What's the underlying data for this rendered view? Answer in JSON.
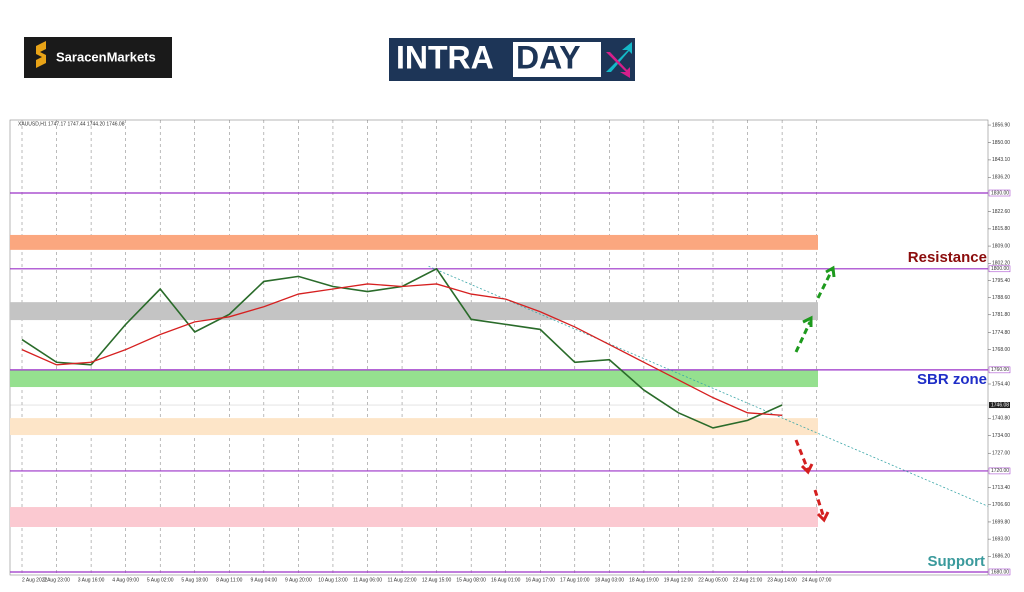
{
  "brand": "SaracenMarkets",
  "banner": {
    "left": "INTRA",
    "right": "DAY"
  },
  "chart_data": {
    "type": "line",
    "title": "XAUUSD,H1 1747.17 1747.44 1744.20 1746.08",
    "categories": [
      "2 Aug 2022",
      "2 Aug 23:00",
      "3 Aug 16:00",
      "4 Aug 09:00",
      "5 Aug 02:00",
      "5 Aug 18:00",
      "8 Aug 11:00",
      "9 Aug 04:00",
      "9 Aug 20:00",
      "10 Aug 13:00",
      "11 Aug 06:00",
      "11 Aug 22:00",
      "12 Aug 15:00",
      "15 Aug 08:00",
      "16 Aug 01:00",
      "16 Aug 17:00",
      "17 Aug 10:00",
      "18 Aug 03:00",
      "18 Aug 19:00",
      "19 Aug 12:00",
      "22 Aug 05:00",
      "22 Aug 21:00",
      "23 Aug 14:00",
      "24 Aug 07:00"
    ],
    "series": [
      {
        "name": "XAUUSD",
        "color": "#2a6b2a",
        "values": [
          1772,
          1763,
          1762,
          1778,
          1792,
          1775,
          1782,
          1795,
          1797,
          1793,
          1791,
          1793,
          1800,
          1780,
          1778,
          1776,
          1763,
          1764,
          1752,
          1743,
          1737,
          1740,
          1746.08,
          null
        ]
      },
      {
        "name": "MA",
        "color": "#d62020",
        "values": [
          1768,
          1762,
          1763,
          1768,
          1774,
          1779,
          1781,
          1785,
          1790,
          1792,
          1794,
          1793,
          1794,
          1790,
          1788,
          1783,
          1777,
          1770,
          1763,
          1756,
          1749,
          1743,
          1742,
          null
        ]
      }
    ],
    "current_price": 1746.08,
    "ylim": [
      1678.8,
      1858.9
    ],
    "yticks": [
      {
        "value": 1856.9,
        "label": "1856.90"
      },
      {
        "value": 1850,
        "label": "1850.00"
      },
      {
        "value": 1843.1,
        "label": "1843.10"
      },
      {
        "value": 1836.2,
        "label": "1836.20"
      },
      {
        "value": 1822.6,
        "label": "1822.60"
      },
      {
        "value": 1815.8,
        "label": "1815.80"
      },
      {
        "value": 1809,
        "label": "1809.00"
      },
      {
        "value": 1802.2,
        "label": "1802.20"
      },
      {
        "value": 1795.4,
        "label": "1795.40"
      },
      {
        "value": 1788.6,
        "label": "1788.60"
      },
      {
        "value": 1781.8,
        "label": "1781.80"
      },
      {
        "value": 1774.8,
        "label": "1774.80"
      },
      {
        "value": 1768,
        "label": "1768.00"
      },
      {
        "value": 1754.4,
        "label": "1754.40"
      },
      {
        "value": 1740.8,
        "label": "1740.80"
      },
      {
        "value": 1734,
        "label": "1734.00"
      },
      {
        "value": 1727,
        "label": "1727.00"
      },
      {
        "value": 1713.4,
        "label": "1713.40"
      },
      {
        "value": 1706.6,
        "label": "1706.60"
      },
      {
        "value": 1699.8,
        "label": "1699.80"
      },
      {
        "value": 1693,
        "label": "1693.00"
      },
      {
        "value": 1686.2,
        "label": "1686.20"
      }
    ],
    "levels": [
      {
        "value": 1830,
        "label": "1830.00"
      },
      {
        "value": 1800,
        "label": "1800.00"
      },
      {
        "value": 1760,
        "label": "1760.00"
      },
      {
        "value": 1720,
        "label": "1720.00"
      },
      {
        "value": 1680,
        "label": "1680.00"
      }
    ],
    "zones": [
      {
        "from": 1813.4,
        "to": 1807.5,
        "color": "#fba77f"
      },
      {
        "from": 1786.8,
        "to": 1779.7,
        "color": "#c4c4c4"
      },
      {
        "from": 1759.9,
        "to": 1753.2,
        "color": "#95e08f"
      },
      {
        "from": 1740.9,
        "to": 1734.2,
        "color": "#fde5c8"
      },
      {
        "from": 1705.7,
        "to": 1697.8,
        "color": "#fbc9d1"
      }
    ],
    "trendline": {
      "start": 1801,
      "end": 1706
    },
    "annotations": {
      "resistance": "Resistance",
      "sbr": "SBR zone",
      "support": "Support"
    },
    "grid": true
  }
}
